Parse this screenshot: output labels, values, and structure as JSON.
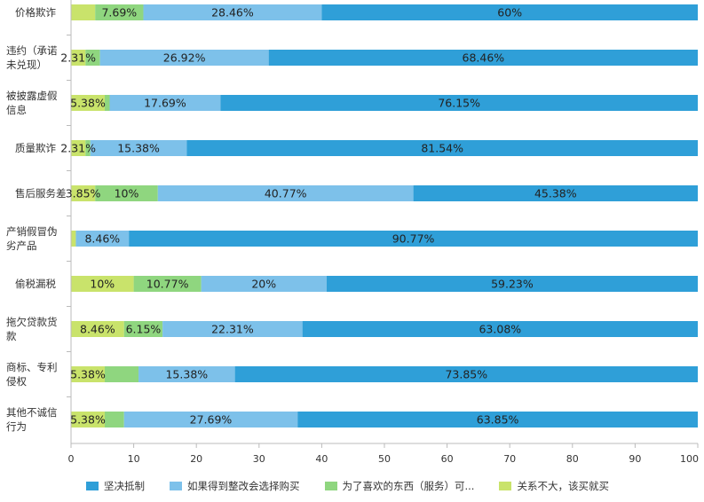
{
  "chart_data": {
    "type": "bar",
    "orientation": "horizontal",
    "stacked": true,
    "categories": [
      "价格欺诈",
      "违约（承诺未兑现）",
      "被披露虚假信息",
      "质量欺诈",
      "售后服务差",
      "产销假冒伪劣产品",
      "偷税漏税",
      "拖欠贷款货款",
      "商标、专利侵权",
      "其他不诚信行为"
    ],
    "category_lines": [
      [
        "价格欺诈"
      ],
      [
        "违约（承诺",
        "未兑现）"
      ],
      [
        "被披露虚假",
        "信息"
      ],
      [
        "质量欺诈"
      ],
      [
        "售后服务差"
      ],
      [
        "产销假冒伪",
        "劣产品"
      ],
      [
        "偷税漏税"
      ],
      [
        "拖欠贷款货",
        "款"
      ],
      [
        "商标、专利",
        "侵权"
      ],
      [
        "其他不诚信",
        "行为"
      ]
    ],
    "series": [
      {
        "name": "关系不大，该买就买",
        "color": "#c9e36b",
        "values": [
          3.85,
          2.31,
          5.38,
          2.31,
          3.85,
          0.77,
          10,
          8.46,
          5.38,
          5.38
        ],
        "labels": [
          "",
          "2.31%",
          "5.38%",
          "2.31%",
          "3.85%",
          "",
          "10%",
          "8.46%",
          "5.38%",
          "5.38%"
        ]
      },
      {
        "name": "为了喜欢的东西（服务）可...",
        "color": "#8fd67f",
        "values": [
          7.69,
          2.31,
          0.78,
          0.77,
          10,
          0,
          10.77,
          6.15,
          5.39,
          3.08
        ],
        "labels": [
          "7.69%",
          "",
          "",
          "",
          "10%",
          "",
          "10.77%",
          "6.15%",
          "",
          ""
        ]
      },
      {
        "name": "如果得到整改会选择购买",
        "color": "#7dc1ea",
        "values": [
          28.46,
          26.92,
          17.69,
          15.38,
          40.77,
          8.46,
          20,
          22.31,
          15.38,
          27.69
        ],
        "labels": [
          "28.46%",
          "26.92%",
          "17.69%",
          "15.38%",
          "40.77%",
          "8.46%",
          "20%",
          "22.31%",
          "15.38%",
          "27.69%"
        ]
      },
      {
        "name": "坚决抵制",
        "color": "#2f9fd8",
        "values": [
          60,
          68.46,
          76.15,
          81.54,
          45.38,
          90.77,
          59.23,
          63.08,
          73.85,
          63.85
        ],
        "labels": [
          "60%",
          "68.46%",
          "76.15%",
          "81.54%",
          "45.38%",
          "90.77%",
          "59.23%",
          "63.08%",
          "73.85%",
          "63.85%"
        ]
      }
    ],
    "legend_order": [
      "坚决抵制",
      "如果得到整改会选择购买",
      "为了喜欢的东西（服务）可...",
      "关系不大，该买就买"
    ],
    "xlim": [
      0,
      100
    ],
    "xticks": [
      0,
      10,
      20,
      30,
      40,
      50,
      60,
      70,
      80,
      90,
      100
    ],
    "xtick_labels": [
      "0",
      "10",
      "20",
      "30",
      "40",
      "50",
      "60",
      "70",
      "80",
      "90",
      "100"
    ],
    "legend_position": "bottom",
    "grid": false
  }
}
